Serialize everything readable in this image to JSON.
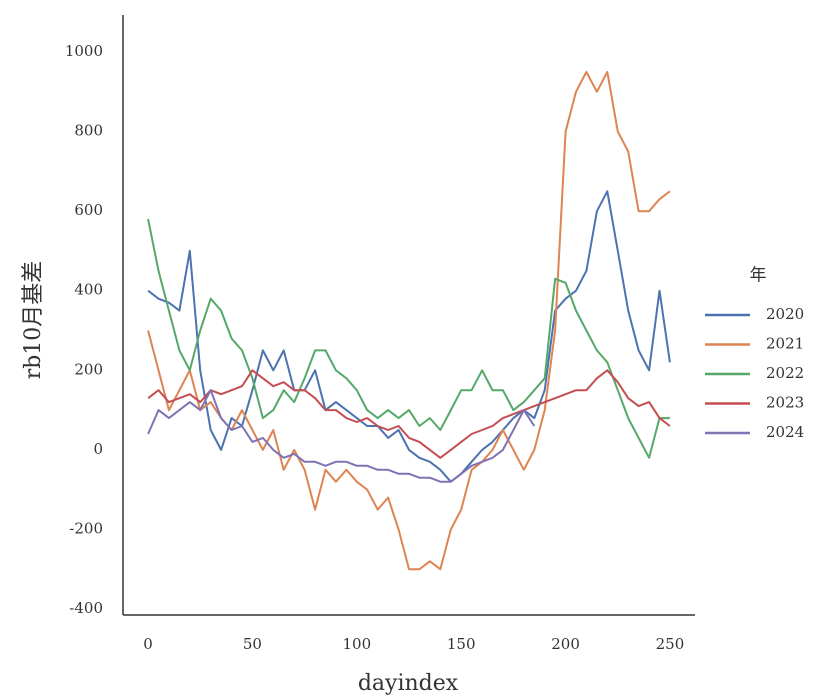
{
  "chart_data": {
    "type": "line",
    "x_label": "dayindex",
    "y_label": "rb10月基差",
    "x": [
      0,
      5,
      10,
      15,
      20,
      25,
      30,
      35,
      40,
      45,
      50,
      55,
      60,
      65,
      70,
      75,
      80,
      85,
      90,
      95,
      100,
      105,
      110,
      115,
      120,
      125,
      130,
      135,
      140,
      145,
      150,
      155,
      160,
      165,
      170,
      175,
      180,
      185,
      190,
      195,
      200,
      205,
      210,
      215,
      220,
      225,
      230,
      235,
      240,
      245,
      250
    ],
    "series": [
      {
        "name": "2020",
        "color": "#4c72b0",
        "values": [
          400,
          380,
          370,
          350,
          500,
          200,
          50,
          0,
          80,
          60,
          150,
          250,
          200,
          250,
          150,
          150,
          200,
          100,
          120,
          100,
          80,
          60,
          60,
          30,
          50,
          0,
          -20,
          -30,
          -50,
          -80,
          -60,
          -30,
          0,
          20,
          50,
          80,
          100,
          80,
          150,
          350,
          380,
          400,
          450,
          600,
          650,
          500,
          350,
          250,
          200,
          400,
          220
        ]
      },
      {
        "name": "2021",
        "color": "#dd8452",
        "values": [
          300,
          200,
          100,
          150,
          200,
          100,
          120,
          80,
          50,
          100,
          50,
          0,
          50,
          -50,
          0,
          -50,
          -150,
          -50,
          -80,
          -50,
          -80,
          -100,
          -150,
          -120,
          -200,
          -300,
          -300,
          -280,
          -300,
          -200,
          -150,
          -50,
          -30,
          0,
          50,
          0,
          -50,
          0,
          100,
          300,
          800,
          900,
          950,
          900,
          950,
          800,
          750,
          600,
          600,
          630,
          650
        ]
      },
      {
        "name": "2022",
        "color": "#55a868",
        "values": [
          580,
          450,
          350,
          250,
          200,
          300,
          380,
          350,
          280,
          250,
          180,
          80,
          100,
          150,
          120,
          180,
          250,
          250,
          200,
          180,
          150,
          100,
          80,
          100,
          80,
          100,
          60,
          80,
          50,
          100,
          150,
          150,
          200,
          150,
          150,
          100,
          120,
          150,
          180,
          430,
          420,
          350,
          300,
          250,
          220,
          150,
          80,
          30,
          -20,
          80,
          80
        ]
      },
      {
        "name": "2023",
        "color": "#c44e52",
        "values": [
          130,
          150,
          120,
          130,
          140,
          120,
          150,
          140,
          150,
          160,
          200,
          180,
          160,
          170,
          150,
          150,
          130,
          100,
          100,
          80,
          70,
          80,
          60,
          50,
          60,
          30,
          20,
          0,
          -20,
          0,
          20,
          40,
          50,
          60,
          80,
          90,
          100,
          110,
          120,
          130,
          140,
          150,
          150,
          180,
          200,
          170,
          130,
          110,
          120,
          80,
          60
        ]
      },
      {
        "name": "2024",
        "color": "#8172b3",
        "values": [
          40,
          100,
          80,
          100,
          120,
          100,
          150,
          80,
          50,
          60,
          20,
          30,
          0,
          -20,
          -10,
          -30,
          -30,
          -40,
          -30,
          -30,
          -40,
          -40,
          -50,
          -50,
          -60,
          -60,
          -70,
          -70,
          -80,
          -80,
          -60,
          -40,
          -30,
          -20,
          0,
          50,
          100,
          60,
          null,
          null,
          null,
          null,
          null,
          null,
          null,
          null,
          null,
          null,
          null,
          null,
          null
        ]
      }
    ],
    "legend_title": "年",
    "legend": "center right",
    "xlim": [
      -12,
      262
    ],
    "ylim": [
      -415,
      1093
    ],
    "xticks": [
      0,
      50,
      100,
      150,
      200,
      250
    ],
    "yticks": [
      -400,
      -200,
      0,
      200,
      400,
      600,
      800,
      1000
    ],
    "grid": false
  }
}
